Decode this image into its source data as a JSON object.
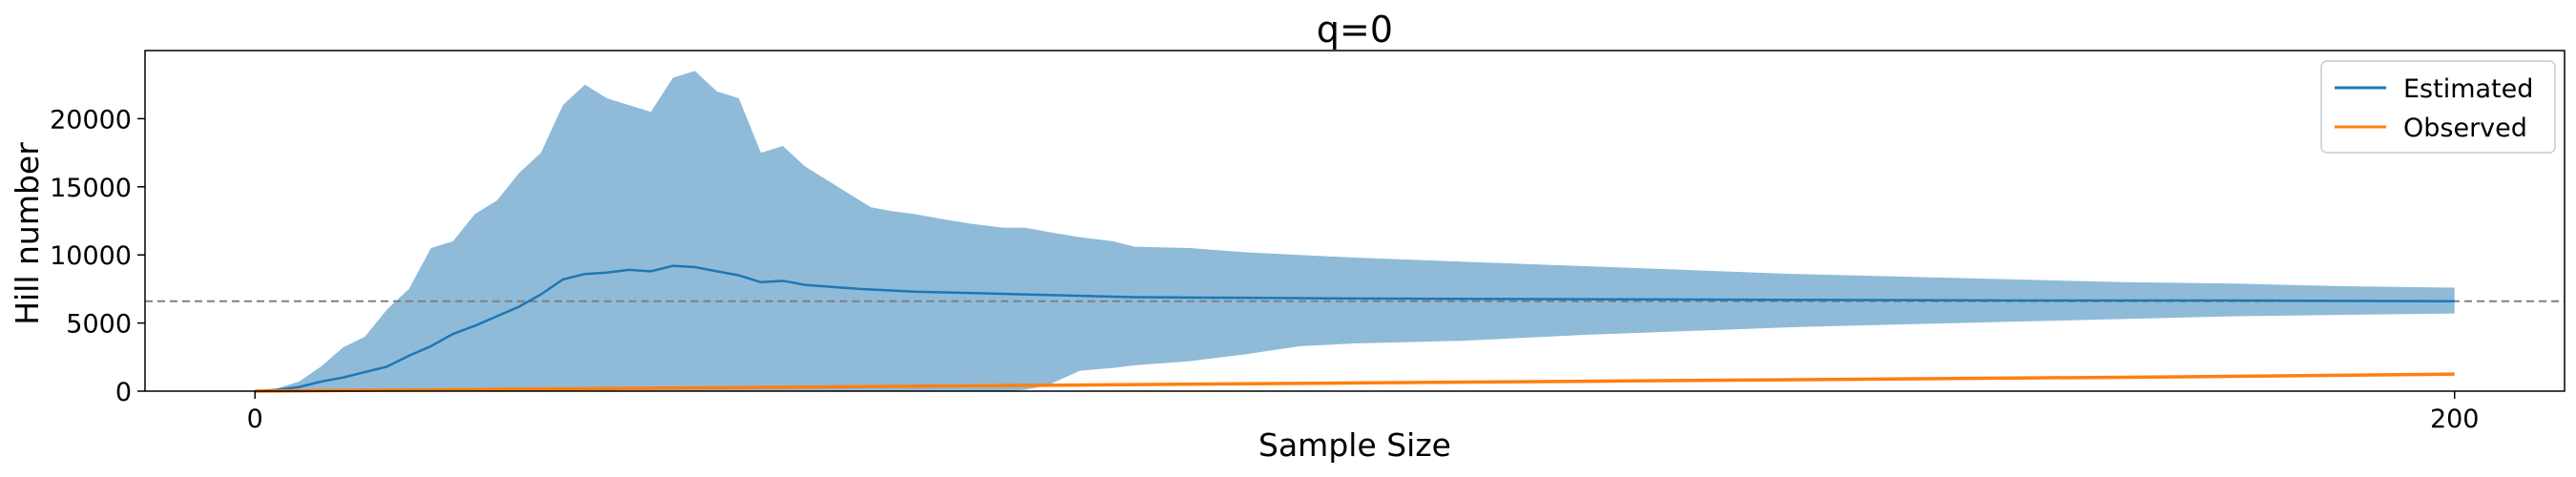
{
  "chart_data": {
    "type": "line",
    "title": "q=0",
    "xlabel": "Sample Size",
    "ylabel": "Hill number",
    "xlim": [
      -10,
      210
    ],
    "ylim": [
      0,
      25000
    ],
    "xticks": [
      0,
      200
    ],
    "yticks": [
      0,
      5000,
      10000,
      15000,
      20000
    ],
    "grid": false,
    "legend_position": "top-right",
    "reference_line": {
      "y": 6600,
      "style": "dashed",
      "color": "#808080"
    },
    "band": {
      "name": "Estimated interval",
      "color": "#1f77b4",
      "opacity": 0.5,
      "x": [
        0,
        2,
        4,
        6,
        8,
        10,
        12,
        14,
        16,
        18,
        20,
        22,
        24,
        26,
        28,
        30,
        32,
        34,
        36,
        38,
        40,
        42,
        44,
        46,
        48,
        50,
        52,
        54,
        56,
        58,
        60,
        62,
        65,
        68,
        70,
        72,
        75,
        78,
        80,
        85,
        90,
        95,
        100,
        110,
        120,
        130,
        140,
        150,
        160,
        170,
        180,
        190,
        200
      ],
      "lower": [
        0,
        0,
        0,
        0,
        0,
        0,
        0,
        0,
        0,
        0,
        0,
        0,
        0,
        0,
        0,
        0,
        0,
        0,
        0,
        0,
        0,
        0,
        0,
        0,
        0,
        0,
        0,
        0,
        0,
        0,
        0,
        0,
        0,
        0,
        100,
        400,
        1500,
        1700,
        1900,
        2200,
        2700,
        3300,
        3500,
        3700,
        4100,
        4400,
        4700,
        4900,
        5100,
        5300,
        5500,
        5600,
        5700
      ],
      "upper": [
        0,
        200,
        700,
        1800,
        3200,
        4000,
        6000,
        7500,
        10500,
        11000,
        13000,
        14000,
        16000,
        17500,
        21000,
        22500,
        21500,
        21000,
        20500,
        23000,
        23500,
        22000,
        21500,
        17500,
        18000,
        16500,
        15500,
        14500,
        13500,
        13200,
        13000,
        12700,
        12300,
        12000,
        12000,
        11700,
        11300,
        11000,
        10600,
        10500,
        10200,
        10000,
        9800,
        9500,
        9200,
        8900,
        8600,
        8400,
        8200,
        8000,
        7900,
        7700,
        7600
      ]
    },
    "series": [
      {
        "name": "Estimated",
        "color": "#1f77b4",
        "x": [
          0,
          2,
          4,
          6,
          8,
          10,
          12,
          14,
          16,
          18,
          20,
          22,
          24,
          26,
          28,
          30,
          32,
          34,
          36,
          38,
          40,
          42,
          44,
          46,
          48,
          50,
          55,
          60,
          65,
          70,
          80,
          90,
          100,
          120,
          140,
          160,
          180,
          200
        ],
        "values": [
          0,
          100,
          300,
          700,
          1000,
          1400,
          1800,
          2600,
          3300,
          4200,
          4800,
          5500,
          6200,
          7100,
          8200,
          8600,
          8700,
          8900,
          8800,
          9200,
          9100,
          8800,
          8500,
          8000,
          8100,
          7800,
          7500,
          7300,
          7200,
          7100,
          6900,
          6850,
          6800,
          6750,
          6700,
          6650,
          6650,
          6600
        ]
      },
      {
        "name": "Observed",
        "color": "#ff7f0e",
        "x": [
          0,
          25,
          50,
          75,
          100,
          125,
          150,
          175,
          200
        ],
        "values": [
          0,
          150,
          300,
          450,
          600,
          750,
          900,
          1050,
          1250
        ]
      }
    ]
  }
}
